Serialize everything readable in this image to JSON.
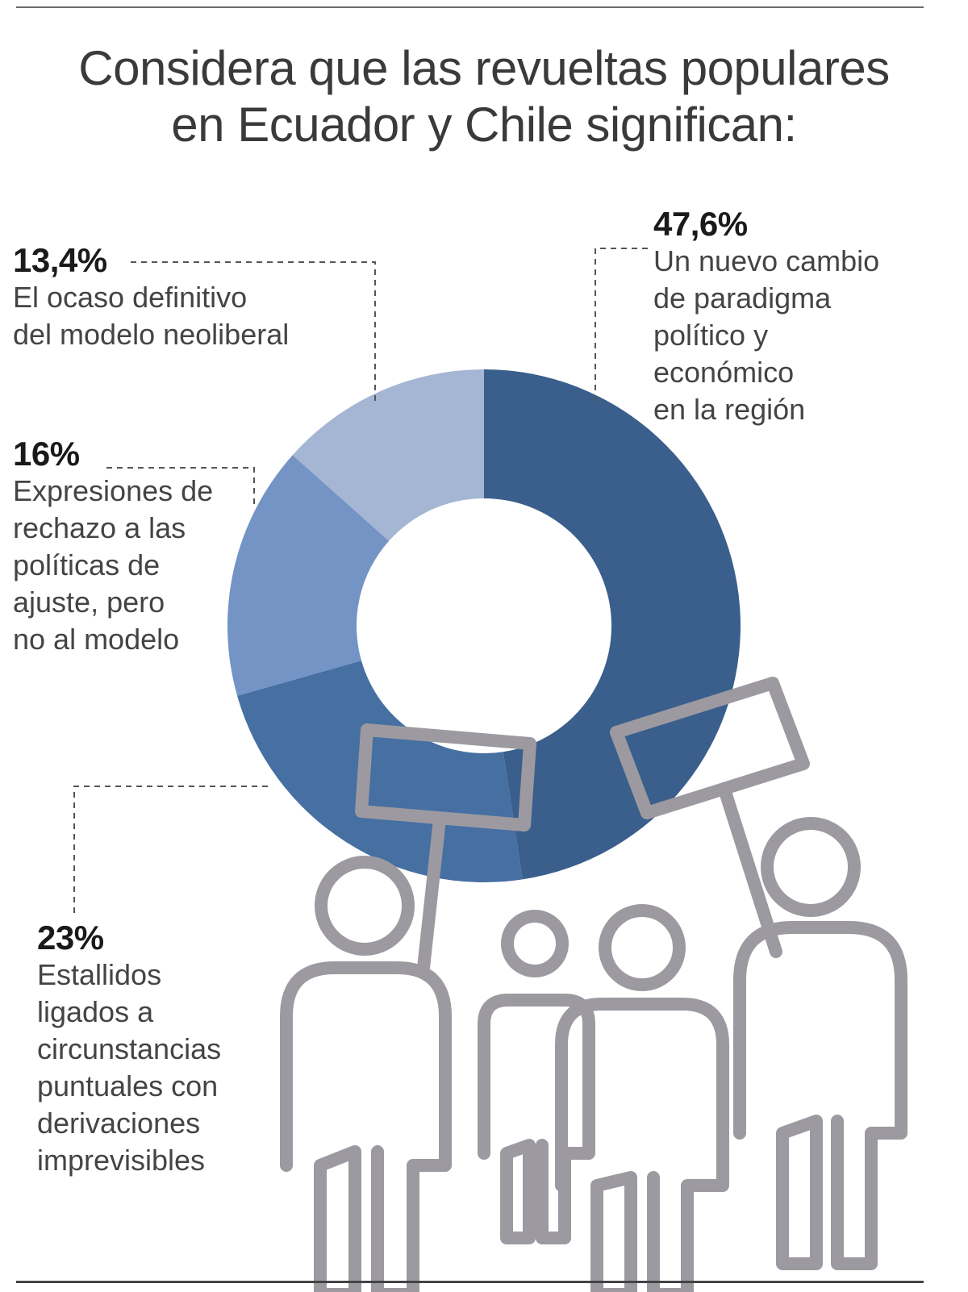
{
  "title_lines": [
    "Considera que las revueltas populares",
    "en Ecuador y Chile significan:"
  ],
  "chart_data": {
    "type": "pie",
    "variant": "donut",
    "title": "Considera que las revueltas populares en Ecuador y Chile significan:",
    "slices": [
      {
        "value": 47.6,
        "value_label": "47,6%",
        "label_lines": [
          "Un nuevo cambio",
          "de paradigma",
          "político y",
          "económico",
          "en la región"
        ],
        "color": "#3a5f8c"
      },
      {
        "value": 23,
        "value_label": "23%",
        "label_lines": [
          "Estallidos",
          "ligados a",
          "circunstancias",
          "puntuales con",
          "derivaciones",
          "imprevisibles"
        ],
        "color": "#466fa2"
      },
      {
        "value": 16,
        "value_label": "16%",
        "label_lines": [
          "Expresiones de",
          "rechazo a las",
          "políticas de",
          "ajuste, pero",
          "no al modelo"
        ],
        "color": "#7494c5"
      },
      {
        "value": 13.4,
        "value_label": "13,4%",
        "label_lines": [
          "El ocaso definitivo",
          "del modelo neoliberal"
        ],
        "color": "#a4b6d4"
      }
    ],
    "start_angle": "12 o'clock",
    "direction": "clockwise",
    "legend": "callout labels around the chart"
  },
  "colors": {
    "people_icons": "#9c9aa0",
    "leader_lines": "#555555",
    "text": "#444444",
    "pct_text": "#1a1a1a"
  },
  "icons": [
    "protester-with-sign-icon",
    "child-icon",
    "person-icon",
    "protester-with-sign-icon"
  ]
}
